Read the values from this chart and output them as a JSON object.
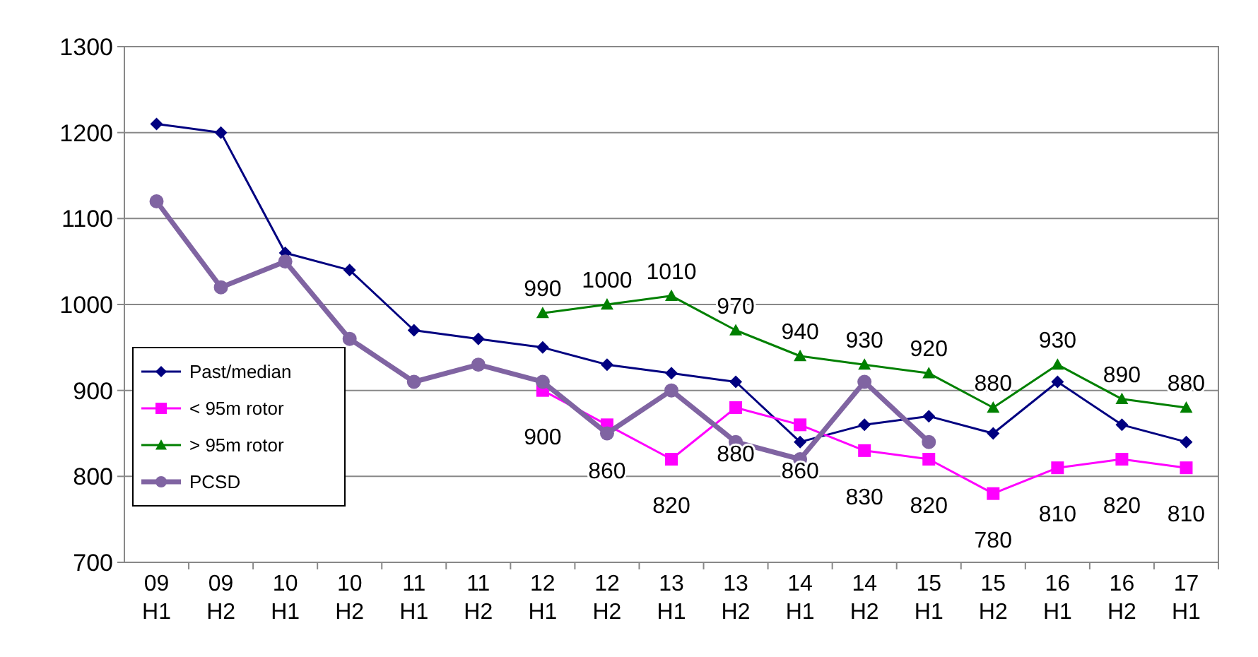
{
  "chart_data": {
    "type": "line",
    "categories": [
      "09 H1",
      "09 H2",
      "10 H1",
      "10 H2",
      "11 H1",
      "11 H2",
      "12 H1",
      "12 H2",
      "13 H1",
      "13 H2",
      "14 H1",
      "14 H2",
      "15 H1",
      "15 H2",
      "16 H1",
      "16 H2",
      "17 H1"
    ],
    "series": [
      {
        "name": "Past/median",
        "color": "#000080",
        "marker": "diamond",
        "values": [
          1210,
          1200,
          1060,
          1040,
          970,
          960,
          950,
          930,
          920,
          910,
          840,
          860,
          870,
          850,
          910,
          860,
          840
        ]
      },
      {
        "name": "< 95m rotor",
        "color": "#ff00ff",
        "marker": "square",
        "values": [
          null,
          null,
          null,
          null,
          null,
          null,
          900,
          860,
          820,
          880,
          860,
          830,
          820,
          780,
          810,
          820,
          810
        ],
        "value_labels": [
          null,
          null,
          null,
          null,
          null,
          null,
          "900",
          "860",
          "820",
          "880",
          "860",
          "830",
          "820",
          "780",
          "810",
          "820",
          "810"
        ]
      },
      {
        "name": "> 95m rotor",
        "color": "#008000",
        "marker": "triangle",
        "values": [
          null,
          null,
          null,
          null,
          null,
          null,
          990,
          1000,
          1010,
          970,
          940,
          930,
          920,
          880,
          930,
          890,
          880
        ],
        "value_labels": [
          null,
          null,
          null,
          null,
          null,
          null,
          "990",
          "1000",
          "1010",
          "970",
          "940",
          "930",
          "920",
          "880",
          "930",
          "890",
          "880"
        ]
      },
      {
        "name": "PCSD",
        "color": "#8064a2",
        "marker": "circle",
        "values": [
          1120,
          1020,
          1050,
          960,
          910,
          930,
          910,
          850,
          900,
          840,
          820,
          910,
          840,
          null,
          null,
          null,
          null
        ]
      }
    ],
    "ylim": [
      700,
      1300
    ],
    "yticks": [
      700,
      800,
      900,
      1000,
      1100,
      1200,
      1300
    ],
    "grid": "y",
    "legend": "bottom left"
  }
}
